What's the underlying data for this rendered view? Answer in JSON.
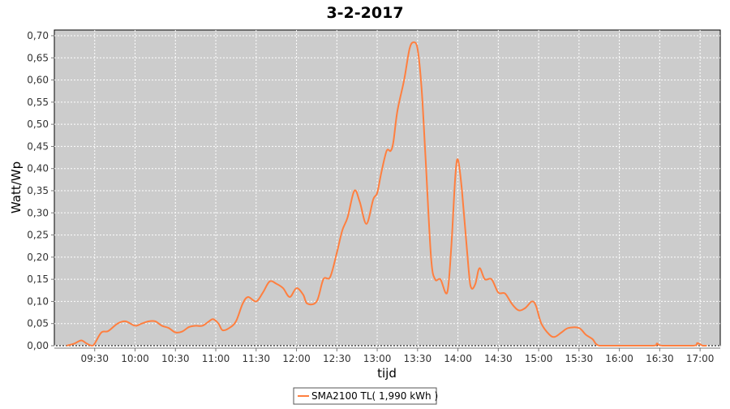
{
  "chart_data": {
    "type": "line",
    "title": "3-2-2017",
    "xlabel": "tijd",
    "ylabel": "Watt/Wp",
    "xlim": [
      "09:00",
      "17:15"
    ],
    "ylim": [
      0,
      0.72
    ],
    "x_ticks": [
      "09:30",
      "10:00",
      "10:30",
      "11:00",
      "11:30",
      "12:00",
      "12:30",
      "13:00",
      "13:30",
      "14:00",
      "14:30",
      "15:00",
      "15:30",
      "16:00",
      "16:30",
      "17:00"
    ],
    "y_ticks": [
      "0,00",
      "0,05",
      "0,10",
      "0,15",
      "0,20",
      "0,25",
      "0,30",
      "0,35",
      "0,40",
      "0,45",
      "0,50",
      "0,55",
      "0,60",
      "0,65",
      "0,70"
    ],
    "grid": true,
    "legend_position": "bottom",
    "colors": {
      "plot_background": "#cccccc",
      "grid": "#ffffff",
      "series": "#ff7f3f"
    },
    "series": [
      {
        "name": "SMA2100 TL( 1,990 kWh )",
        "x": [
          "09:09",
          "09:15",
          "09:20",
          "09:24",
          "09:28",
          "09:30",
          "09:35",
          "09:40",
          "09:47",
          "09:53",
          "10:00",
          "10:05",
          "10:10",
          "10:15",
          "10:20",
          "10:25",
          "10:30",
          "10:35",
          "10:40",
          "10:45",
          "10:50",
          "10:55",
          "10:58",
          "11:02",
          "11:05",
          "11:10",
          "11:15",
          "11:20",
          "11:24",
          "11:30",
          "11:35",
          "11:40",
          "11:45",
          "11:50",
          "11:55",
          "12:00",
          "12:05",
          "12:08",
          "12:15",
          "12:20",
          "12:25",
          "12:30",
          "12:34",
          "12:38",
          "12:43",
          "12:47",
          "12:52",
          "12:57",
          "13:00",
          "13:03",
          "13:07",
          "13:10",
          "13:12",
          "13:15",
          "13:20",
          "13:24",
          "13:27",
          "13:30",
          "13:33",
          "13:36",
          "13:40",
          "13:43",
          "13:47",
          "13:52",
          "13:55",
          "13:58",
          "14:00",
          "14:03",
          "14:08",
          "14:10",
          "14:13",
          "14:16",
          "14:20",
          "14:25",
          "14:30",
          "14:35",
          "14:40",
          "14:45",
          "14:50",
          "14:55",
          "14:58",
          "15:02",
          "15:08",
          "15:12",
          "15:17",
          "15:22",
          "15:30",
          "15:35",
          "15:40",
          "15:45",
          "16:00",
          "16:25",
          "16:28",
          "16:32",
          "16:55",
          "16:58",
          "17:02",
          "17:05"
        ],
        "y": [
          0.0,
          0.005,
          0.012,
          0.005,
          0.0,
          0.005,
          0.03,
          0.033,
          0.05,
          0.055,
          0.045,
          0.05,
          0.055,
          0.055,
          0.045,
          0.04,
          0.03,
          0.032,
          0.042,
          0.045,
          0.045,
          0.055,
          0.06,
          0.05,
          0.035,
          0.04,
          0.055,
          0.095,
          0.11,
          0.1,
          0.12,
          0.145,
          0.14,
          0.13,
          0.11,
          0.13,
          0.115,
          0.095,
          0.1,
          0.15,
          0.155,
          0.21,
          0.26,
          0.29,
          0.35,
          0.325,
          0.275,
          0.33,
          0.345,
          0.39,
          0.44,
          0.44,
          0.46,
          0.53,
          0.6,
          0.67,
          0.685,
          0.67,
          0.58,
          0.42,
          0.2,
          0.15,
          0.15,
          0.12,
          0.22,
          0.38,
          0.42,
          0.35,
          0.17,
          0.13,
          0.14,
          0.175,
          0.15,
          0.15,
          0.12,
          0.118,
          0.095,
          0.08,
          0.085,
          0.1,
          0.09,
          0.05,
          0.025,
          0.02,
          0.03,
          0.04,
          0.04,
          0.025,
          0.015,
          0.0,
          0.0,
          0.0,
          0.005,
          0.0,
          0.0,
          0.006,
          0.0,
          0.0
        ]
      }
    ]
  }
}
